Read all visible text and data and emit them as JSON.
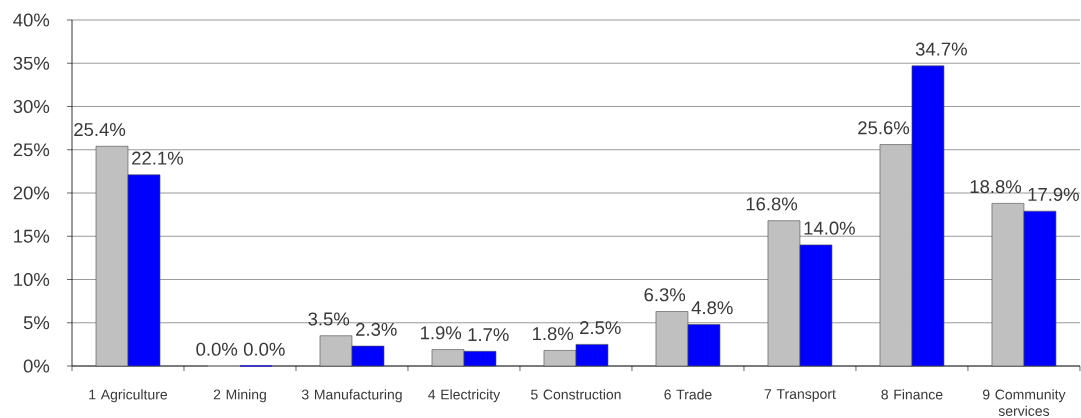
{
  "chart_data": {
    "type": "bar",
    "categories": [
      "1 Agriculture",
      "2 Mining",
      "3 Manufacturing",
      "4 Electricity",
      "5 Construction",
      "6 Trade",
      "7 Transport",
      "8 Finance",
      "9 Community services"
    ],
    "series": [
      {
        "color": "#c0c0c0",
        "values": [
          25.4,
          0.0,
          3.5,
          1.9,
          1.8,
          6.3,
          16.8,
          25.6,
          18.8
        ],
        "value_labels": [
          "25.4%",
          "0.0%",
          "3.5%",
          "1.9%",
          "1.8%",
          "6.3%",
          "16.8%",
          "25.6%",
          "18.8%"
        ]
      },
      {
        "color": "#0000ff",
        "values": [
          22.1,
          0.0,
          2.3,
          1.7,
          2.5,
          4.8,
          14.0,
          34.7,
          17.9
        ],
        "value_labels": [
          "22.1%",
          "0.0%",
          "2.3%",
          "1.7%",
          "2.5%",
          "4.8%",
          "14.0%",
          "34.7%",
          "17.9%"
        ]
      }
    ],
    "ylim": [
      0,
      40
    ],
    "yticks": [
      {
        "value": 0,
        "label": "0%"
      },
      {
        "value": 5,
        "label": "5%"
      },
      {
        "value": 10,
        "label": "10%"
      },
      {
        "value": 15,
        "label": "15%"
      },
      {
        "value": 20,
        "label": "20%"
      },
      {
        "value": 25,
        "label": "25%"
      },
      {
        "value": 30,
        "label": "30%"
      },
      {
        "value": 35,
        "label": "35%"
      },
      {
        "value": 40,
        "label": "40%"
      }
    ],
    "grid": "y"
  }
}
